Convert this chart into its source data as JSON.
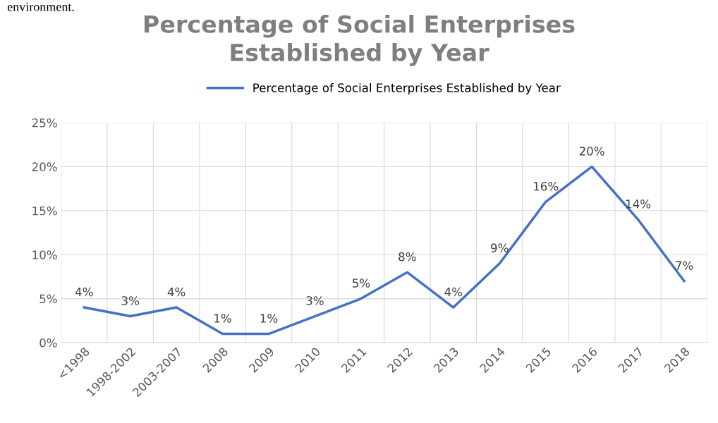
{
  "chart_data": {
    "type": "line",
    "title": "Percentage of Social Enterprises\nEstablished by Year",
    "categories": [
      "<1998",
      "1998-2002",
      "2003-2007",
      "2008",
      "2009",
      "2010",
      "2011",
      "2012",
      "2013",
      "2014",
      "2015",
      "2016",
      "2017",
      "2018"
    ],
    "series": [
      {
        "name": "Percentage of Social Enterprises Established by Year",
        "color": "#4472c4",
        "values": [
          4,
          3,
          4,
          1,
          1,
          3,
          5,
          8,
          4,
          9,
          16,
          20,
          14,
          7
        ],
        "value_labels": [
          "4%",
          "3%",
          "4%",
          "1%",
          "1%",
          "3%",
          "5%",
          "8%",
          "4%",
          "9%",
          "16%",
          "20%",
          "14%",
          "7%"
        ]
      }
    ],
    "ylim": [
      0,
      25
    ],
    "yticks": [
      {
        "value": 0,
        "label": "0%"
      },
      {
        "value": 5,
        "label": "5%"
      },
      {
        "value": 10,
        "label": "10%"
      },
      {
        "value": 15,
        "label": "15%"
      },
      {
        "value": 20,
        "label": "20%"
      },
      {
        "value": 25,
        "label": "25%"
      }
    ],
    "grid": true,
    "legend": "top",
    "marker": "none",
    "line_style": "solid",
    "annotations": [
      "environment."
    ]
  }
}
